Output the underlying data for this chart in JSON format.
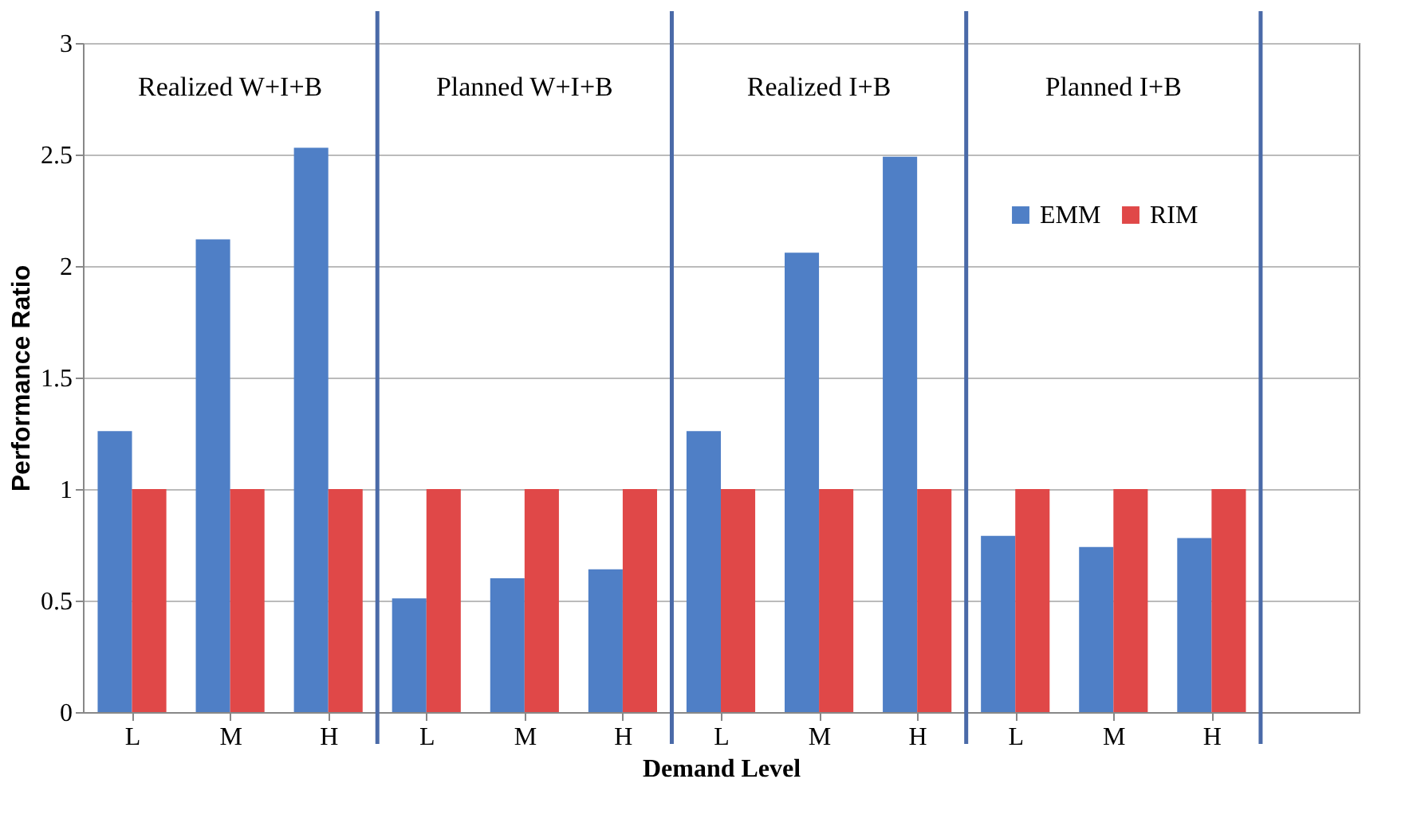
{
  "chart_data": {
    "type": "bar",
    "xlabel": "Demand Level",
    "ylabel": "Performance Ratio",
    "categories": [
      "L",
      "M",
      "H",
      "L",
      "M",
      "H",
      "L",
      "M",
      "H",
      "L",
      "M",
      "H",
      null
    ],
    "series": [
      {
        "name": "EMM",
        "color": "#4f7fc6",
        "values": [
          1.26,
          2.12,
          2.53,
          0.51,
          0.6,
          0.64,
          1.26,
          2.06,
          2.49,
          0.79,
          0.74,
          0.78,
          null
        ]
      },
      {
        "name": "RIM",
        "color": "#e04848",
        "values": [
          1,
          1,
          1,
          1,
          1,
          1,
          1,
          1,
          1,
          1,
          1,
          1,
          null
        ]
      }
    ],
    "ylim": [
      0,
      3
    ],
    "yticks": [
      0,
      0.5,
      1,
      1.5,
      2,
      2.5,
      3
    ],
    "grid": "y",
    "legend": "top right",
    "annotations": [
      "Realized W+I+B",
      "Planned W+I+B",
      "Realized I+B",
      "Planned I+B"
    ]
  }
}
